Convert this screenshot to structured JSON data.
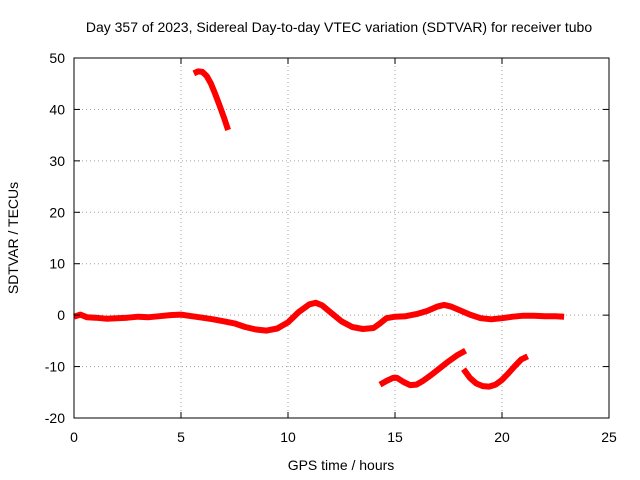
{
  "chart_data": {
    "type": "line",
    "title": "Day 357 of 2023, Sidereal Day-to-day VTEC variation (SDTVAR) for receiver tubo",
    "xlabel": "GPS time / hours",
    "ylabel": "SDTVAR / TECUs",
    "xlim": [
      0,
      25
    ],
    "ylim": [
      -20,
      50
    ],
    "xticks": [
      0,
      5,
      10,
      15,
      20,
      25
    ],
    "yticks": [
      -20,
      -10,
      0,
      10,
      20,
      30,
      40,
      50
    ],
    "grid": true,
    "colors": {
      "series": "#ff0000",
      "grid": "#a0a0a0",
      "axes": "#000000"
    },
    "series": [
      {
        "name": "segment-1",
        "x": [
          5.6,
          5.8,
          6.0,
          6.2,
          6.4,
          6.6,
          6.8,
          7.0,
          7.2
        ],
        "y": [
          47.0,
          47.4,
          47.3,
          46.5,
          45.0,
          43.0,
          40.8,
          38.5,
          36.0
        ]
      },
      {
        "name": "segment-2",
        "x": [
          0.0,
          0.3,
          0.6,
          1.0,
          1.5,
          2.0,
          2.5,
          3.0,
          3.5,
          4.0,
          4.5,
          5.0,
          5.5,
          6.0,
          6.5,
          7.0,
          7.5,
          8.0,
          8.5,
          9.0,
          9.5,
          10.0,
          10.5,
          11.0,
          11.3,
          11.6,
          12.0,
          12.5,
          13.0,
          13.5,
          14.0,
          14.3,
          14.6,
          15.0,
          15.5,
          16.0,
          16.5,
          17.0,
          17.3,
          17.6,
          18.0,
          18.5,
          19.0,
          19.5,
          20.0,
          20.5,
          21.0,
          21.5,
          22.0,
          22.5,
          22.9
        ],
        "y": [
          -0.3,
          0.1,
          -0.4,
          -0.5,
          -0.7,
          -0.6,
          -0.5,
          -0.3,
          -0.4,
          -0.2,
          0.0,
          0.1,
          -0.2,
          -0.5,
          -0.8,
          -1.2,
          -1.6,
          -2.3,
          -2.8,
          -3.0,
          -2.6,
          -1.4,
          0.6,
          2.1,
          2.4,
          1.9,
          0.5,
          -1.2,
          -2.3,
          -2.7,
          -2.5,
          -1.6,
          -0.6,
          -0.3,
          -0.2,
          0.2,
          0.8,
          1.7,
          2.0,
          1.7,
          1.0,
          0.1,
          -0.6,
          -0.8,
          -0.6,
          -0.3,
          -0.1,
          -0.1,
          -0.2,
          -0.2,
          -0.3
        ]
      },
      {
        "name": "segment-3",
        "x": [
          14.3,
          14.6,
          14.9,
          15.1,
          15.4,
          15.7,
          16.0,
          16.3,
          16.7,
          17.1,
          17.5,
          17.9,
          18.3
        ],
        "y": [
          -13.5,
          -12.8,
          -12.2,
          -12.2,
          -13.0,
          -13.6,
          -13.5,
          -12.8,
          -11.6,
          -10.3,
          -9.0,
          -7.8,
          -6.9
        ]
      },
      {
        "name": "segment-4",
        "x": [
          18.2,
          18.5,
          18.8,
          19.1,
          19.4,
          19.7,
          20.0,
          20.3,
          20.6,
          20.9,
          21.2
        ],
        "y": [
          -10.5,
          -12.2,
          -13.3,
          -13.8,
          -13.9,
          -13.5,
          -12.6,
          -11.3,
          -9.9,
          -8.6,
          -8.0
        ]
      }
    ]
  }
}
